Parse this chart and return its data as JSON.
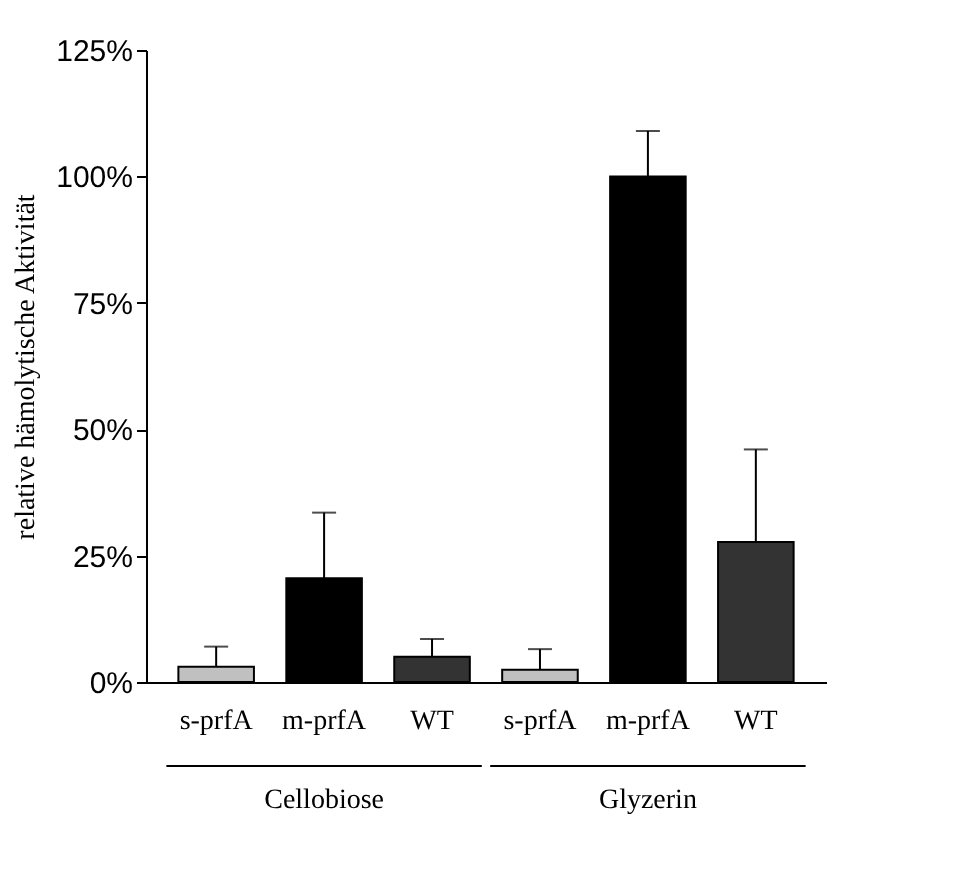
{
  "chart_data": {
    "type": "bar",
    "ylabel": "relative hämolytische Aktivität",
    "categories": [
      "s-prfA",
      "m-prfA",
      "WT",
      "s-prfA",
      "m-prfA",
      "WT"
    ],
    "values": [
      3,
      20.5,
      5,
      2.4,
      100,
      27.7
    ],
    "colors": [
      "#c0c0c0",
      "#000000",
      "#333333",
      "#c0c0c0",
      "#000000",
      "#333333"
    ],
    "errors": [
      [
        3,
        7
      ],
      [
        20.5,
        33.5
      ],
      [
        5,
        8.5
      ],
      [
        2.4,
        6.5
      ],
      [
        100,
        109
      ],
      [
        27.7,
        46
      ]
    ],
    "ylim": [
      0,
      125
    ],
    "yticks": [
      {
        "value": 0,
        "label": "0%"
      },
      {
        "value": 25,
        "label": "25%"
      },
      {
        "value": 50,
        "label": "50%"
      },
      {
        "value": 75,
        "label": "75%"
      },
      {
        "value": 100,
        "label": "100%"
      },
      {
        "value": 125,
        "label": "125%"
      }
    ],
    "annotations": [
      "Cellobiose",
      "Glyzerin"
    ],
    "grid": false
  }
}
